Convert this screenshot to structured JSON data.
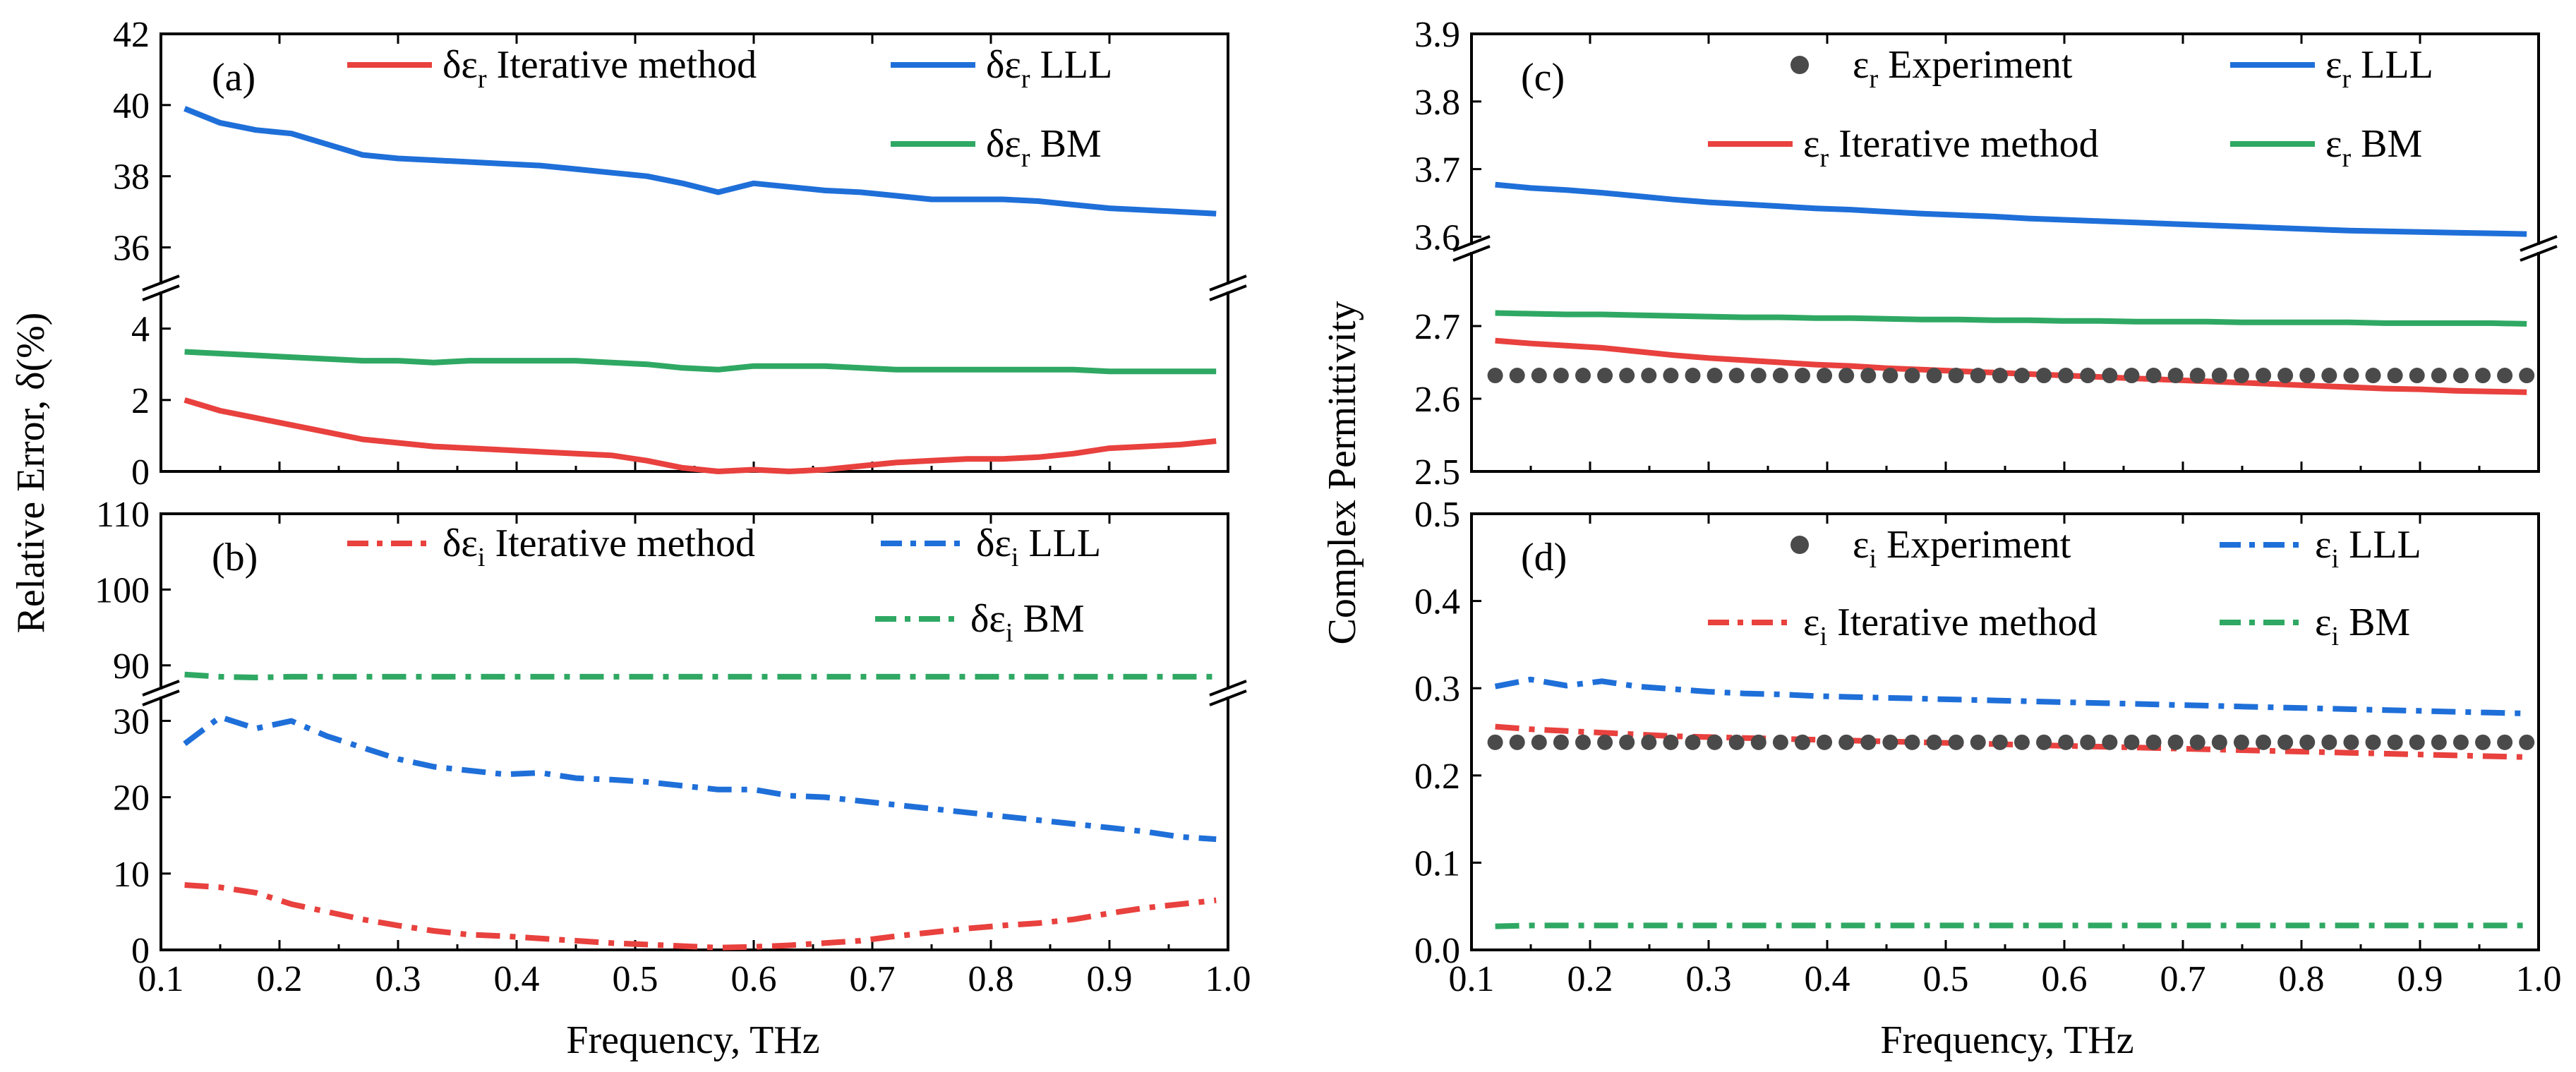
{
  "figure": {
    "xlabel": "Frequency, THz",
    "left_ylabel": "Relative Error, δ(%)",
    "right_ylabel": "Complex Permittivity"
  },
  "chart_data": [
    {
      "id": "a",
      "panel_label": "(a)",
      "type": "line",
      "style": "solid",
      "title": "",
      "xlabel": "Frequency, THz",
      "ylabel": "Relative Error, δ(%)",
      "xlim": [
        0.1,
        1.0
      ],
      "xticks": [
        "0.1",
        "0.2",
        "0.3",
        "0.4",
        "0.5",
        "0.6",
        "0.7",
        "0.8",
        "0.9",
        "1.0"
      ],
      "broken_y": true,
      "lower_ylim": [
        0,
        5
      ],
      "lower_ticks": [
        "0",
        "2",
        "4"
      ],
      "upper_ylim": [
        35,
        42
      ],
      "upper_ticks": [
        "36",
        "38",
        "40",
        "42"
      ],
      "legend": [
        {
          "sym": "δε",
          "sub": "r",
          "text": " Iterative method",
          "series": 0
        },
        {
          "sym": "δε",
          "sub": "r",
          "text": " LLL",
          "series": 1
        },
        {
          "sym": "δε",
          "sub": "r",
          "text": " BM",
          "series": 2
        }
      ],
      "x": [
        0.12,
        0.15,
        0.18,
        0.21,
        0.24,
        0.27,
        0.3,
        0.33,
        0.36,
        0.39,
        0.42,
        0.45,
        0.48,
        0.51,
        0.54,
        0.57,
        0.6,
        0.63,
        0.66,
        0.69,
        0.72,
        0.75,
        0.78,
        0.81,
        0.84,
        0.87,
        0.9,
        0.93,
        0.96,
        0.99
      ],
      "series": [
        {
          "name": "δεr Iterative method",
          "color": "#e8413e",
          "values": [
            2.0,
            1.7,
            1.5,
            1.3,
            1.1,
            0.9,
            0.8,
            0.7,
            0.65,
            0.6,
            0.55,
            0.5,
            0.45,
            0.3,
            0.1,
            0.0,
            0.05,
            0.0,
            0.05,
            0.15,
            0.25,
            0.3,
            0.35,
            0.35,
            0.4,
            0.5,
            0.65,
            0.7,
            0.75,
            0.85
          ]
        },
        {
          "name": "δεr LLL",
          "color": "#1f6fd9",
          "values": [
            39.9,
            39.5,
            39.3,
            39.2,
            38.9,
            38.6,
            38.5,
            38.45,
            38.4,
            38.35,
            38.3,
            38.2,
            38.1,
            38.0,
            37.8,
            37.55,
            37.8,
            37.7,
            37.6,
            37.55,
            37.45,
            37.35,
            37.35,
            37.35,
            37.3,
            37.2,
            37.1,
            37.05,
            37.0,
            36.95
          ]
        },
        {
          "name": "δεr BM",
          "color": "#2fa863",
          "values": [
            3.35,
            3.3,
            3.25,
            3.2,
            3.15,
            3.1,
            3.1,
            3.05,
            3.1,
            3.1,
            3.1,
            3.1,
            3.05,
            3.0,
            2.9,
            2.85,
            2.95,
            2.95,
            2.95,
            2.9,
            2.85,
            2.85,
            2.85,
            2.85,
            2.85,
            2.85,
            2.8,
            2.8,
            2.8,
            2.8
          ]
        }
      ]
    },
    {
      "id": "b",
      "panel_label": "(b)",
      "type": "line",
      "style": "dashdot",
      "title": "",
      "xlabel": "Frequency, THz",
      "ylabel": "Relative Error, δ(%)",
      "xlim": [
        0.1,
        1.0
      ],
      "xticks": [
        "0.1",
        "0.2",
        "0.3",
        "0.4",
        "0.5",
        "0.6",
        "0.7",
        "0.8",
        "0.9",
        "1.0"
      ],
      "broken_y": true,
      "lower_ylim": [
        0,
        33
      ],
      "lower_ticks": [
        "0",
        "10",
        "20",
        "30"
      ],
      "upper_ylim": [
        87,
        110
      ],
      "upper_ticks": [
        "90",
        "100",
        "110"
      ],
      "legend": [
        {
          "sym": "δε",
          "sub": "i",
          "text": " Iterative method",
          "series": 0
        },
        {
          "sym": "δε",
          "sub": "i",
          "text": " LLL",
          "series": 1
        },
        {
          "sym": "δε",
          "sub": "i",
          "text": " BM",
          "series": 2
        }
      ],
      "x": [
        0.12,
        0.15,
        0.18,
        0.21,
        0.24,
        0.27,
        0.3,
        0.33,
        0.36,
        0.39,
        0.42,
        0.45,
        0.48,
        0.51,
        0.54,
        0.57,
        0.6,
        0.63,
        0.66,
        0.69,
        0.72,
        0.75,
        0.78,
        0.81,
        0.84,
        0.87,
        0.9,
        0.93,
        0.96,
        0.99
      ],
      "series": [
        {
          "name": "δεi Iterative method",
          "color": "#e8413e",
          "values": [
            8.5,
            8.2,
            7.5,
            6.0,
            5.0,
            4.0,
            3.2,
            2.5,
            2.0,
            1.8,
            1.5,
            1.2,
            0.9,
            0.7,
            0.5,
            0.3,
            0.4,
            0.6,
            0.9,
            1.2,
            1.8,
            2.3,
            2.8,
            3.2,
            3.5,
            4.0,
            4.8,
            5.5,
            6.0,
            6.5
          ]
        },
        {
          "name": "δεi LLL",
          "color": "#1f6fd9",
          "values": [
            27.0,
            30.5,
            29.0,
            30.0,
            28.0,
            26.5,
            25.0,
            24.0,
            23.5,
            23.0,
            23.2,
            22.5,
            22.3,
            22.0,
            21.5,
            21.0,
            21.0,
            20.2,
            20.0,
            19.5,
            19.0,
            18.5,
            18.0,
            17.5,
            17.0,
            16.5,
            16.0,
            15.5,
            14.8,
            14.5
          ]
        },
        {
          "name": "δεi BM",
          "color": "#2fa863",
          "values": [
            88.8,
            88.5,
            88.4,
            88.5,
            88.5,
            88.5,
            88.5,
            88.5,
            88.5,
            88.5,
            88.5,
            88.5,
            88.5,
            88.5,
            88.5,
            88.5,
            88.5,
            88.5,
            88.5,
            88.5,
            88.5,
            88.5,
            88.5,
            88.5,
            88.5,
            88.5,
            88.5,
            88.5,
            88.5,
            88.5
          ]
        }
      ]
    },
    {
      "id": "c",
      "panel_label": "(c)",
      "type": "line",
      "style": "solid",
      "title": "",
      "xlabel": "Frequency, THz",
      "ylabel": "Complex Permittivity",
      "xlim": [
        0.1,
        1.0
      ],
      "xticks": [
        "0.1",
        "0.2",
        "0.3",
        "0.4",
        "0.5",
        "0.6",
        "0.7",
        "0.8",
        "0.9",
        "1.0"
      ],
      "broken_y": true,
      "lower_ylim": [
        2.5,
        2.8
      ],
      "lower_ticks": [
        "2.5",
        "2.6",
        "2.7"
      ],
      "upper_ylim": [
        3.59,
        3.9
      ],
      "upper_ticks": [
        "3.6",
        "3.7",
        "3.8",
        "3.9"
      ],
      "legend": [
        {
          "sym": "ε",
          "sub": "r",
          "text": " Experiment",
          "series": 3
        },
        {
          "sym": "ε",
          "sub": "r",
          "text": " LLL",
          "series": 1
        },
        {
          "sym": "ε",
          "sub": "r",
          "text": " Iterative method",
          "series": 0
        },
        {
          "sym": "ε",
          "sub": "r",
          "text": " BM",
          "series": 2
        }
      ],
      "x": [
        0.12,
        0.15,
        0.18,
        0.21,
        0.24,
        0.27,
        0.3,
        0.33,
        0.36,
        0.39,
        0.42,
        0.45,
        0.48,
        0.51,
        0.54,
        0.57,
        0.6,
        0.63,
        0.66,
        0.69,
        0.72,
        0.75,
        0.78,
        0.81,
        0.84,
        0.87,
        0.9,
        0.93,
        0.96,
        0.99
      ],
      "series": [
        {
          "name": "εr Iterative method",
          "color": "#e8413e",
          "values": [
            2.68,
            2.676,
            2.673,
            2.67,
            2.665,
            2.66,
            2.656,
            2.653,
            2.65,
            2.647,
            2.645,
            2.642,
            2.64,
            2.638,
            2.636,
            2.634,
            2.632,
            2.63,
            2.628,
            2.626,
            2.624,
            2.622,
            2.62,
            2.618,
            2.616,
            2.614,
            2.613,
            2.611,
            2.61,
            2.609
          ]
        },
        {
          "name": "εr LLL",
          "color": "#1f6fd9",
          "values": [
            3.677,
            3.672,
            3.669,
            3.665,
            3.66,
            3.655,
            3.651,
            3.648,
            3.645,
            3.642,
            3.64,
            3.637,
            3.634,
            3.632,
            3.63,
            3.627,
            3.625,
            3.623,
            3.621,
            3.619,
            3.617,
            3.615,
            3.613,
            3.611,
            3.609,
            3.608,
            3.607,
            3.606,
            3.605,
            3.604
          ]
        },
        {
          "name": "εr BM",
          "color": "#2fa863",
          "values": [
            2.718,
            2.717,
            2.716,
            2.716,
            2.715,
            2.714,
            2.713,
            2.712,
            2.712,
            2.711,
            2.711,
            2.71,
            2.709,
            2.709,
            2.708,
            2.708,
            2.707,
            2.707,
            2.706,
            2.706,
            2.706,
            2.705,
            2.705,
            2.705,
            2.705,
            2.704,
            2.704,
            2.704,
            2.704,
            2.703
          ]
        },
        {
          "name": "εr Experiment",
          "color": "#4a4a4a",
          "kind": "scatter",
          "values": [
            2.632,
            2.632,
            2.632,
            2.632,
            2.632,
            2.632,
            2.632,
            2.632,
            2.632,
            2.632,
            2.632,
            2.632,
            2.632,
            2.632,
            2.632,
            2.632,
            2.632,
            2.632,
            2.632,
            2.632,
            2.632,
            2.632,
            2.632,
            2.632,
            2.632,
            2.632,
            2.632,
            2.632,
            2.632,
            2.632
          ]
        }
      ]
    },
    {
      "id": "d",
      "panel_label": "(d)",
      "type": "line",
      "style": "dashdot",
      "title": "",
      "xlabel": "Frequency, THz",
      "ylabel": "Complex Permittivity",
      "xlim": [
        0.1,
        1.0
      ],
      "xticks": [
        "0.1",
        "0.2",
        "0.3",
        "0.4",
        "0.5",
        "0.6",
        "0.7",
        "0.8",
        "0.9",
        "1.0"
      ],
      "broken_y": false,
      "ylim": [
        0.0,
        0.5
      ],
      "yticks": [
        "0.0",
        "0.1",
        "0.2",
        "0.3",
        "0.4",
        "0.5"
      ],
      "legend": [
        {
          "sym": "ε",
          "sub": "i",
          "text": " Experiment",
          "series": 3
        },
        {
          "sym": "ε",
          "sub": "i",
          "text": " LLL",
          "series": 1
        },
        {
          "sym": "ε",
          "sub": "i",
          "text": " Iterative method",
          "series": 0
        },
        {
          "sym": "ε",
          "sub": "i",
          "text": " BM",
          "series": 2
        }
      ],
      "x": [
        0.12,
        0.15,
        0.18,
        0.21,
        0.24,
        0.27,
        0.3,
        0.33,
        0.36,
        0.39,
        0.42,
        0.45,
        0.48,
        0.51,
        0.54,
        0.57,
        0.6,
        0.63,
        0.66,
        0.69,
        0.72,
        0.75,
        0.78,
        0.81,
        0.84,
        0.87,
        0.9,
        0.93,
        0.96,
        0.99
      ],
      "series": [
        {
          "name": "εi Iterative method",
          "color": "#e8413e",
          "values": [
            0.256,
            0.253,
            0.251,
            0.249,
            0.247,
            0.245,
            0.244,
            0.243,
            0.242,
            0.241,
            0.24,
            0.239,
            0.238,
            0.237,
            0.236,
            0.235,
            0.234,
            0.233,
            0.232,
            0.231,
            0.23,
            0.229,
            0.228,
            0.227,
            0.226,
            0.225,
            0.224,
            0.223,
            0.222,
            0.221
          ]
        },
        {
          "name": "εi LLL",
          "color": "#1f6fd9",
          "values": [
            0.302,
            0.31,
            0.303,
            0.308,
            0.302,
            0.299,
            0.296,
            0.294,
            0.293,
            0.291,
            0.29,
            0.289,
            0.288,
            0.287,
            0.286,
            0.285,
            0.284,
            0.283,
            0.282,
            0.281,
            0.28,
            0.279,
            0.278,
            0.277,
            0.276,
            0.275,
            0.274,
            0.273,
            0.272,
            0.271
          ]
        },
        {
          "name": "εi BM",
          "color": "#2fa863",
          "values": [
            0.027,
            0.028,
            0.028,
            0.028,
            0.028,
            0.028,
            0.028,
            0.028,
            0.028,
            0.028,
            0.028,
            0.028,
            0.028,
            0.028,
            0.028,
            0.028,
            0.028,
            0.028,
            0.028,
            0.028,
            0.028,
            0.028,
            0.028,
            0.028,
            0.028,
            0.028,
            0.028,
            0.028,
            0.028,
            0.028
          ]
        },
        {
          "name": "εi Experiment",
          "color": "#4a4a4a",
          "kind": "scatter",
          "values": [
            0.238,
            0.238,
            0.238,
            0.238,
            0.238,
            0.238,
            0.238,
            0.238,
            0.238,
            0.238,
            0.238,
            0.238,
            0.238,
            0.238,
            0.238,
            0.238,
            0.238,
            0.238,
            0.238,
            0.238,
            0.238,
            0.238,
            0.238,
            0.238,
            0.238,
            0.238,
            0.238,
            0.238,
            0.238,
            0.238
          ]
        }
      ]
    }
  ]
}
